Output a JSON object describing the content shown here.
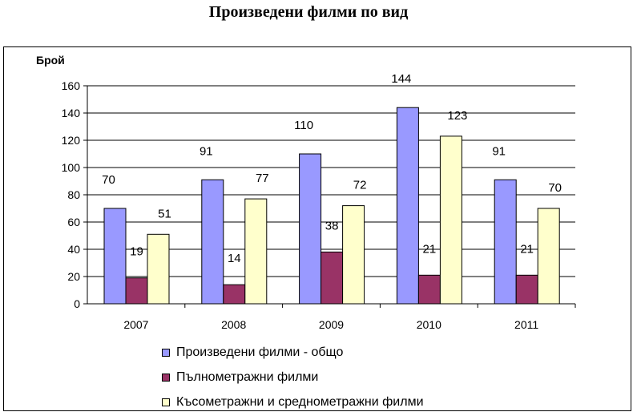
{
  "title": "Произведени филми по вид",
  "chart_data": {
    "type": "bar",
    "ylabel": "Брой",
    "xlabel": "",
    "ylim": [
      0,
      160
    ],
    "yticks": [
      0,
      20,
      40,
      60,
      80,
      100,
      120,
      140,
      160
    ],
    "categories": [
      "2007",
      "2008",
      "2009",
      "2010",
      "2011"
    ],
    "series": [
      {
        "name": "Произведени филми - общо",
        "values": [
          70,
          91,
          110,
          144,
          91
        ],
        "color": "#9999ff"
      },
      {
        "name": "Пълнометражни филми",
        "values": [
          19,
          14,
          38,
          21,
          21
        ],
        "color": "#993366"
      },
      {
        "name": "Късометражни и среднометражни филми",
        "values": [
          51,
          77,
          72,
          123,
          70
        ],
        "color": "#ffffcc"
      }
    ],
    "grid": true,
    "legend_position": "bottom"
  }
}
